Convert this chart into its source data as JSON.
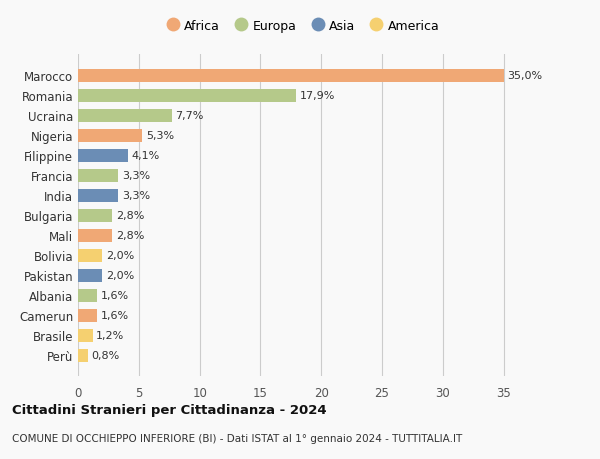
{
  "countries": [
    "Marocco",
    "Romania",
    "Ucraina",
    "Nigeria",
    "Filippine",
    "Francia",
    "India",
    "Bulgaria",
    "Mali",
    "Bolivia",
    "Pakistan",
    "Albania",
    "Camerun",
    "Brasile",
    "Perù"
  ],
  "values": [
    35.0,
    17.9,
    7.7,
    5.3,
    4.1,
    3.3,
    3.3,
    2.8,
    2.8,
    2.0,
    2.0,
    1.6,
    1.6,
    1.2,
    0.8
  ],
  "labels": [
    "35,0%",
    "17,9%",
    "7,7%",
    "5,3%",
    "4,1%",
    "3,3%",
    "3,3%",
    "2,8%",
    "2,8%",
    "2,0%",
    "2,0%",
    "1,6%",
    "1,6%",
    "1,2%",
    "0,8%"
  ],
  "continents": [
    "Africa",
    "Europa",
    "Europa",
    "Africa",
    "Asia",
    "Europa",
    "Asia",
    "Europa",
    "Africa",
    "America",
    "Asia",
    "Europa",
    "Africa",
    "America",
    "America"
  ],
  "continent_colors": {
    "Africa": "#F0A875",
    "Europa": "#B5C98A",
    "Asia": "#6B8DB5",
    "America": "#F5D070"
  },
  "legend_order": [
    "Africa",
    "Europa",
    "Asia",
    "America"
  ],
  "title": "Cittadini Stranieri per Cittadinanza - 2024",
  "subtitle": "COMUNE DI OCCHIEPPO INFERIORE (BI) - Dati ISTAT al 1° gennaio 2024 - TUTTITALIA.IT",
  "xlim": [
    0,
    37
  ],
  "xticks": [
    0,
    5,
    10,
    15,
    20,
    25,
    30,
    35
  ],
  "background_color": "#f9f9f9",
  "grid_color": "#cccccc"
}
